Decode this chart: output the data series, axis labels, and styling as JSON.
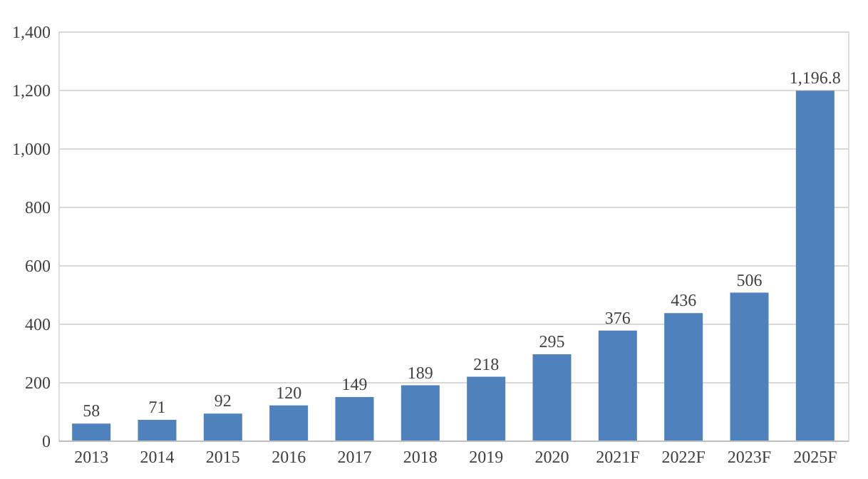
{
  "chart_data": {
    "type": "bar",
    "categories": [
      "2013",
      "2014",
      "2015",
      "2016",
      "2017",
      "2018",
      "2019",
      "2020",
      "2021F",
      "2022F",
      "2023F",
      "2025F"
    ],
    "values": [
      58,
      71,
      92,
      120,
      149,
      189,
      218,
      295,
      376,
      436,
      506,
      1196.8
    ],
    "value_labels": [
      "58",
      "71",
      "92",
      "120",
      "149",
      "189",
      "218",
      "295",
      "376",
      "436",
      "506",
      "1,196.8"
    ],
    "color": "#4f81bd",
    "ylim": [
      0,
      1400
    ],
    "yticks": [
      0,
      200,
      400,
      600,
      800,
      {
        "value": 1000,
        "label": "1,000"
      },
      {
        "value": 1200,
        "label": "1,200"
      },
      {
        "value": 1400,
        "label": "1,400"
      }
    ],
    "grid": "y"
  }
}
